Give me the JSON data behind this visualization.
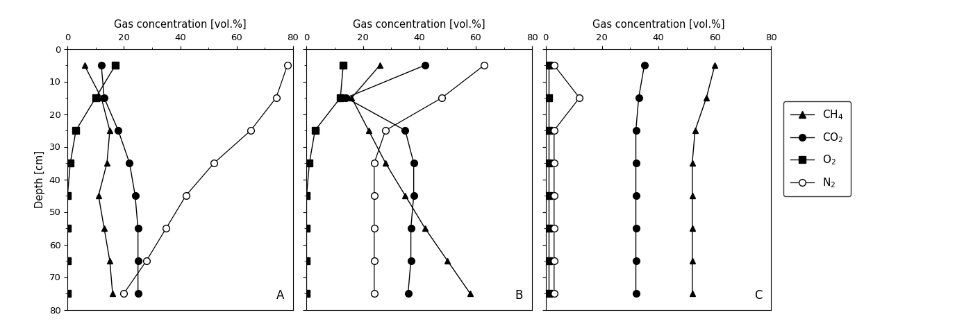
{
  "depths": [
    5,
    15,
    25,
    35,
    45,
    55,
    65,
    75
  ],
  "panel_A": {
    "CH4": [
      6,
      12,
      16,
      14,
      11,
      14,
      16,
      16
    ],
    "CO2": [
      12,
      12,
      18,
      22,
      24,
      25,
      25,
      25
    ],
    "O2": [
      14,
      10,
      2,
      0,
      0,
      0,
      0,
      0
    ],
    "N2": [
      78,
      74,
      65,
      52,
      42,
      35,
      28,
      20
    ]
  },
  "panel_B": {
    "CH4": [
      26,
      16,
      22,
      28,
      35,
      43,
      50,
      60
    ],
    "CO2": [
      42,
      16,
      35,
      38,
      38,
      38,
      37,
      36
    ],
    "O2": [
      13,
      12,
      3,
      1,
      0,
      0,
      0,
      0
    ],
    "N2": [
      63,
      48,
      30,
      25,
      25,
      25,
      25,
      25
    ]
  },
  "panel_C": {
    "CH4": [
      60,
      57,
      53,
      52,
      52,
      52,
      52,
      52
    ],
    "CO2": [
      35,
      33,
      32,
      32,
      32,
      32,
      32,
      32
    ],
    "O2": [
      1,
      0.5,
      0.5,
      0.5,
      0.5,
      0.5,
      0.5,
      0.5
    ],
    "N2": [
      3,
      12,
      3,
      3,
      3,
      3,
      3,
      3
    ]
  },
  "xlabel": "Gas concentration [vol.%]",
  "ylabel": "Depth [cm]",
  "xlim": [
    0,
    80
  ],
  "ylim": [
    80,
    0
  ],
  "xticks": [
    0,
    20,
    40,
    60,
    80
  ],
  "yticks": [
    0,
    10,
    20,
    30,
    40,
    50,
    60,
    70,
    80
  ],
  "panel_labels": [
    "A",
    "B",
    "C"
  ],
  "bg_color": "white"
}
